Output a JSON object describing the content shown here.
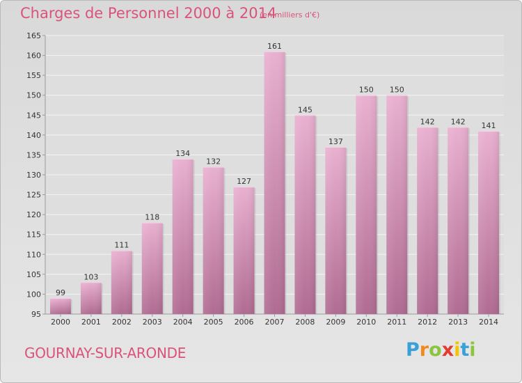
{
  "header": {
    "title": "Charges de Personnel 2000 à 2014",
    "subtitle": "(en milliers d'€)"
  },
  "footer": {
    "commune": "GOURNAY-SUR-ARONDE",
    "brand": [
      "P",
      "r",
      "o",
      "x",
      "i",
      "t",
      "i"
    ]
  },
  "colors": {
    "accent": "#d9537a",
    "bar_light": "#e6aacb",
    "bar_dark": "#b16f95",
    "brand_letters": [
      "#3aa0d8",
      "#f08a1c",
      "#8bc53f",
      "#e03c31",
      "#f2c500",
      "#3aa0d8",
      "#8bc53f"
    ]
  },
  "chart_data": {
    "type": "bar",
    "categories": [
      "2000",
      "2001",
      "2002",
      "2003",
      "2004",
      "2005",
      "2006",
      "2007",
      "2008",
      "2009",
      "2010",
      "2011",
      "2012",
      "2013",
      "2014"
    ],
    "values": [
      99,
      103,
      111,
      118,
      134,
      132,
      127,
      161,
      145,
      137,
      150,
      150,
      142,
      142,
      141
    ],
    "data_labels": [
      "99",
      "103",
      "111",
      "118",
      "134",
      "132",
      "127",
      "161",
      "145",
      "137",
      "150",
      "150",
      "142",
      "142",
      "141"
    ],
    "y_ticks": [
      "95",
      "100",
      "105",
      "110",
      "115",
      "120",
      "125",
      "130",
      "135",
      "140",
      "145",
      "150",
      "155",
      "160",
      "165"
    ],
    "ylim": [
      95,
      165
    ],
    "grid": true,
    "title": "Charges de Personnel 2000 à 2014",
    "xlabel": "",
    "ylabel": ""
  }
}
